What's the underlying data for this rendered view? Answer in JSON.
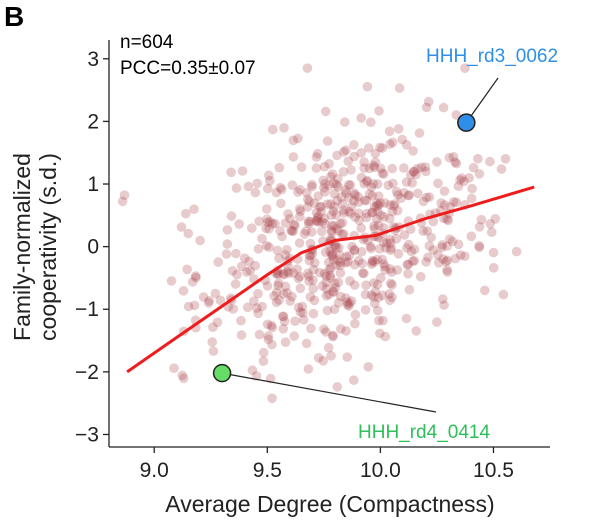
{
  "panel_label": "B",
  "stats": {
    "n": "n=604",
    "pcc": "PCC=0.35±0.07"
  },
  "colors": {
    "points": "#a8454d",
    "trend": "#ee1c1c",
    "highlight_blue": "#2f8fe8",
    "highlight_green": "#66dd66",
    "label_blue": "#2f8fe8",
    "label_green": "#2fbf5a"
  },
  "chart_data": {
    "type": "scatter",
    "xlabel": "Average Degree (Compactness)",
    "ylabel": [
      "Family-normalized",
      "cooperativity (s.d.)"
    ],
    "xlim": [
      8.8,
      10.75
    ],
    "ylim": [
      -3.2,
      3.3
    ],
    "x_ticks": [
      9.0,
      9.5,
      10.0,
      10.5
    ],
    "x_tick_labels": [
      "9.0",
      "9.5",
      "10.0",
      "10.5"
    ],
    "y_ticks": [
      -3,
      -2,
      -1,
      0,
      1,
      2,
      3
    ],
    "y_tick_labels": [
      "−3",
      "−2",
      "−1",
      "0",
      "1",
      "2",
      "3"
    ],
    "grid": false,
    "n_points": 604,
    "scatter_distribution": {
      "x_mean": 9.82,
      "x_sd": 0.3,
      "y_mean": 0.05,
      "y_sd": 0.95,
      "correlation": 0.35
    },
    "trend_line": {
      "x": [
        8.88,
        9.1,
        9.3,
        9.5,
        9.65,
        9.8,
        9.98,
        10.2,
        10.4,
        10.68
      ],
      "y": [
        -2.0,
        -1.45,
        -0.95,
        -0.45,
        -0.1,
        0.1,
        0.18,
        0.45,
        0.65,
        0.95
      ]
    },
    "highlights": [
      {
        "name": "HHH_rd3_0062",
        "x": 10.38,
        "y": 1.98,
        "color": "#2f8fe8"
      },
      {
        "name": "HHH_rd4_0414",
        "x": 9.3,
        "y": -2.02,
        "color": "#66dd66"
      }
    ]
  }
}
